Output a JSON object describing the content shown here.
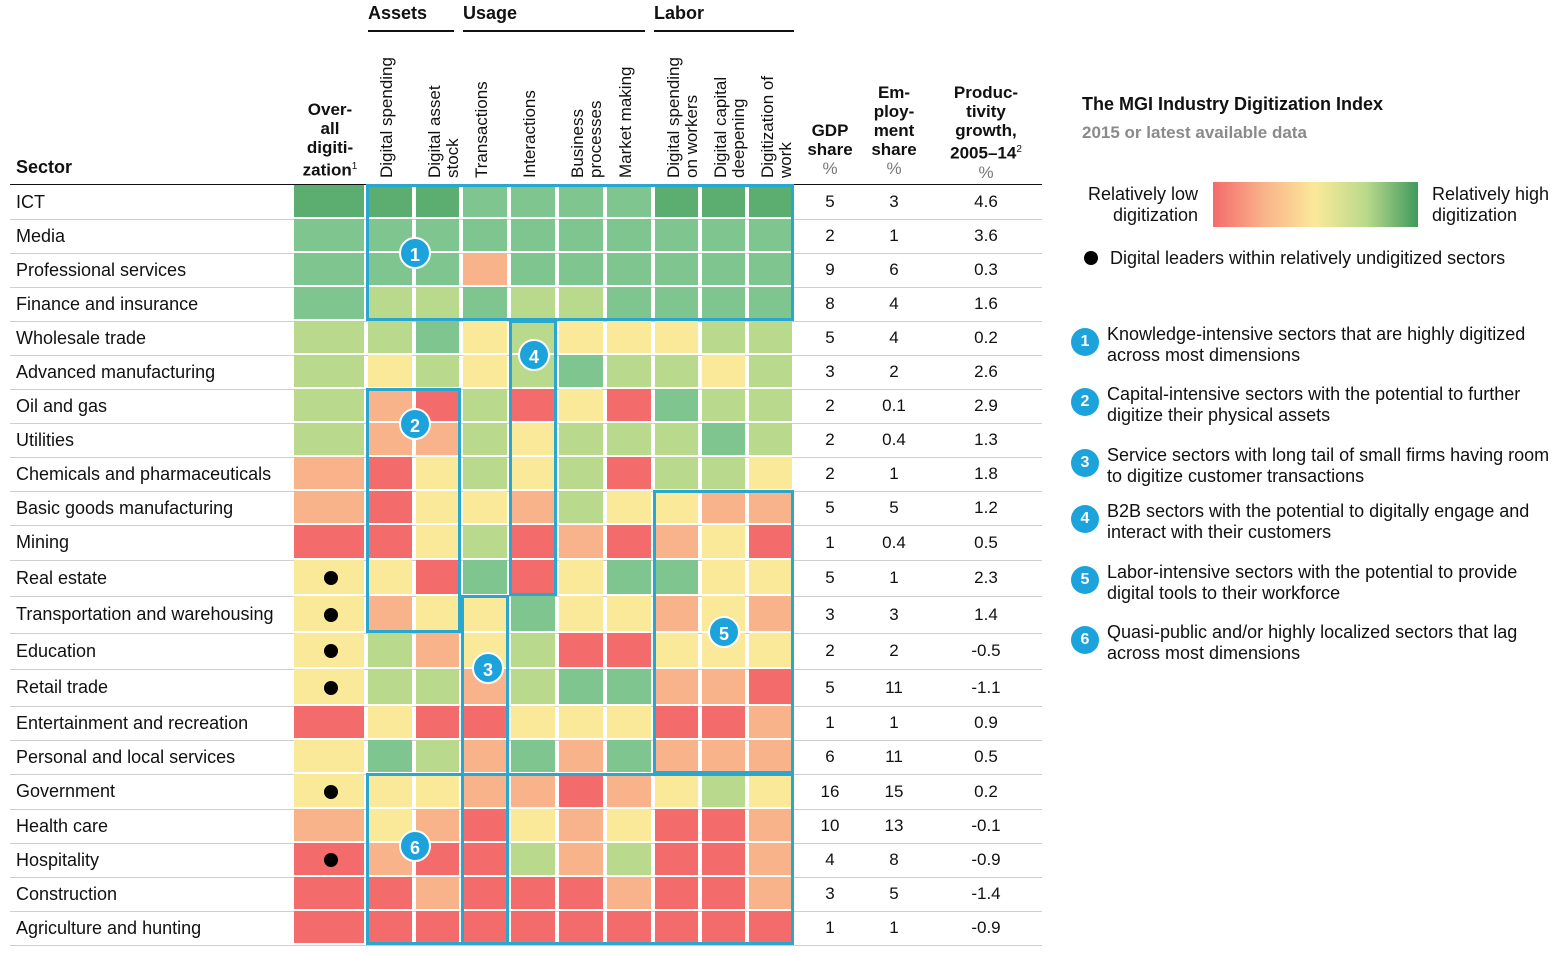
{
  "headers": {
    "sector": "Sector",
    "overall": [
      "Over-",
      "all",
      "digiti-",
      "zation"
    ],
    "overall_sup": "1",
    "groups": [
      "Assets",
      "Usage",
      "Labor"
    ],
    "metrics": [
      "Digital spending",
      "Digital asset stock",
      "Transactions",
      "Interactions",
      "Business processes",
      "Market making",
      "Digital spending on workers",
      "Digital capital deepening",
      "Digitization of work"
    ],
    "gdp": [
      "GDP",
      "share"
    ],
    "emp": [
      "Em-",
      "ploy-",
      "ment",
      "share"
    ],
    "prod": [
      "Produc-",
      "tivity",
      "growth,",
      "2005–14"
    ],
    "prod_sup": "2",
    "pct": "%"
  },
  "legend": {
    "title": "The MGI Industry Digitization Index",
    "subtitle": "2015 or latest available data",
    "low_label": "Relatively low digitization",
    "high_label": "Relatively high digitization",
    "dot_label": "Digital leaders within relatively undigitized sectors",
    "colors": [
      "#f46b6b",
      "#f9b38a",
      "#fbe99a",
      "#b9d98c",
      "#7fc58f",
      "#5bae70"
    ]
  },
  "clusters": [
    {
      "id": "1",
      "text": "Knowledge-intensive sectors that are highly digitized across most dimensions"
    },
    {
      "id": "2",
      "text": "Capital-intensive sectors with the potential to further digitize their physical assets"
    },
    {
      "id": "3",
      "text": "Service sectors with long tail of small firms having room to digitize customer transactions"
    },
    {
      "id": "4",
      "text": "B2B sectors with the potential to digitally engage and interact with their customers"
    },
    {
      "id": "5",
      "text": "Labor-intensive sectors with the potential to provide digital tools to their workforce"
    },
    {
      "id": "6",
      "text": "Quasi-public and/or highly localized sectors that lag across most dimensions"
    }
  ],
  "chart_data": {
    "type": "heatmap",
    "title": "The MGI Industry Digitization Index",
    "subtitle": "2015 or latest available data",
    "scale": "0 = relatively low digitization ... 5 = relatively high digitization",
    "columns": [
      "Overall digitization",
      "Digital spending",
      "Digital asset stock",
      "Transactions",
      "Interactions",
      "Business processes",
      "Market making",
      "Digital spending on workers",
      "Digital capital deepening",
      "Digitization of work"
    ],
    "rows": [
      {
        "sector": "ICT",
        "levels": [
          5,
          5,
          5,
          4,
          4,
          4,
          4,
          5,
          5,
          5
        ],
        "leader": false,
        "gdp": "5",
        "emp": "3",
        "prod": "4.6"
      },
      {
        "sector": "Media",
        "levels": [
          4,
          4,
          4,
          4,
          4,
          4,
          4,
          4,
          4,
          4
        ],
        "leader": false,
        "gdp": "2",
        "emp": "1",
        "prod": "3.6"
      },
      {
        "sector": "Professional services",
        "levels": [
          4,
          4,
          4,
          1,
          4,
          4,
          4,
          4,
          4,
          4
        ],
        "leader": false,
        "gdp": "9",
        "emp": "6",
        "prod": "0.3"
      },
      {
        "sector": "Finance and insurance",
        "levels": [
          4,
          3,
          3,
          4,
          3,
          3,
          4,
          4,
          4,
          4
        ],
        "leader": false,
        "gdp": "8",
        "emp": "4",
        "prod": "1.6"
      },
      {
        "sector": "Wholesale trade",
        "levels": [
          3,
          3,
          4,
          2,
          3,
          2,
          2,
          2,
          3,
          3
        ],
        "leader": false,
        "gdp": "5",
        "emp": "4",
        "prod": "0.2"
      },
      {
        "sector": "Advanced manufacturing",
        "levels": [
          3,
          2,
          3,
          2,
          3,
          4,
          3,
          3,
          2,
          3
        ],
        "leader": false,
        "gdp": "3",
        "emp": "2",
        "prod": "2.6"
      },
      {
        "sector": "Oil and gas",
        "levels": [
          3,
          1,
          0,
          3,
          0,
          2,
          0,
          4,
          3,
          3
        ],
        "leader": false,
        "gdp": "2",
        "emp": "0.1",
        "prod": "2.9"
      },
      {
        "sector": "Utilities",
        "levels": [
          3,
          1,
          1,
          3,
          2,
          3,
          3,
          3,
          4,
          3
        ],
        "leader": false,
        "gdp": "2",
        "emp": "0.4",
        "prod": "1.3"
      },
      {
        "sector": "Chemicals and pharmaceuticals",
        "levels": [
          1,
          0,
          2,
          3,
          2,
          3,
          0,
          3,
          3,
          2
        ],
        "leader": false,
        "gdp": "2",
        "emp": "1",
        "prod": "1.8"
      },
      {
        "sector": "Basic goods manufacturing",
        "levels": [
          1,
          0,
          2,
          2,
          1,
          3,
          2,
          2,
          1,
          1
        ],
        "leader": false,
        "gdp": "5",
        "emp": "5",
        "prod": "1.2"
      },
      {
        "sector": "Mining",
        "levels": [
          0,
          0,
          2,
          3,
          0,
          1,
          0,
          1,
          2,
          0
        ],
        "leader": false,
        "gdp": "1",
        "emp": "0.4",
        "prod": "0.5"
      },
      {
        "sector": "Real estate",
        "levels": [
          2,
          2,
          0,
          4,
          0,
          2,
          4,
          4,
          2,
          2
        ],
        "leader": true,
        "gdp": "5",
        "emp": "1",
        "prod": "2.3"
      },
      {
        "sector": "Transportation and warehousing",
        "levels": [
          2,
          1,
          2,
          2,
          4,
          2,
          2,
          1,
          2,
          1
        ],
        "leader": true,
        "gdp": "3",
        "emp": "3",
        "prod": "1.4"
      },
      {
        "sector": "Education",
        "levels": [
          2,
          3,
          1,
          2,
          3,
          0,
          0,
          2,
          2,
          2
        ],
        "leader": true,
        "gdp": "2",
        "emp": "2",
        "prod": "-0.5"
      },
      {
        "sector": "Retail trade",
        "levels": [
          2,
          3,
          3,
          1,
          3,
          4,
          4,
          1,
          1,
          0
        ],
        "leader": true,
        "gdp": "5",
        "emp": "11",
        "prod": "-1.1"
      },
      {
        "sector": "Entertainment and recreation",
        "levels": [
          0,
          2,
          0,
          0,
          2,
          2,
          2,
          0,
          0,
          1
        ],
        "leader": false,
        "gdp": "1",
        "emp": "1",
        "prod": "0.9"
      },
      {
        "sector": "Personal and local services",
        "levels": [
          2,
          4,
          3,
          1,
          4,
          1,
          4,
          1,
          1,
          1
        ],
        "leader": false,
        "gdp": "6",
        "emp": "11",
        "prod": "0.5"
      },
      {
        "sector": "Government",
        "levels": [
          2,
          2,
          2,
          1,
          1,
          0,
          1,
          2,
          3,
          2
        ],
        "leader": true,
        "gdp": "16",
        "emp": "15",
        "prod": "0.2"
      },
      {
        "sector": "Health care",
        "levels": [
          1,
          2,
          1,
          0,
          2,
          1,
          2,
          0,
          0,
          1
        ],
        "leader": false,
        "gdp": "10",
        "emp": "13",
        "prod": "-0.1"
      },
      {
        "sector": "Hospitality",
        "levels": [
          0,
          1,
          0,
          0,
          3,
          1,
          3,
          0,
          0,
          1
        ],
        "leader": true,
        "gdp": "4",
        "emp": "8",
        "prod": "-0.9"
      },
      {
        "sector": "Construction",
        "levels": [
          0,
          0,
          1,
          0,
          0,
          0,
          1,
          0,
          0,
          1
        ],
        "leader": false,
        "gdp": "3",
        "emp": "5",
        "prod": "-1.4"
      },
      {
        "sector": "Agriculture and hunting",
        "levels": [
          0,
          0,
          0,
          0,
          0,
          0,
          0,
          0,
          0,
          0
        ],
        "leader": false,
        "gdp": "1",
        "emp": "1",
        "prod": "-0.9"
      }
    ],
    "cluster_regions": [
      {
        "id": "1",
        "rows": [
          0,
          3
        ],
        "cols": [
          1,
          9
        ]
      },
      {
        "id": "2",
        "rows": [
          6,
          12
        ],
        "cols": [
          1,
          2
        ]
      },
      {
        "id": "3",
        "rows": [
          12,
          21
        ],
        "cols": [
          3,
          3
        ]
      },
      {
        "id": "4",
        "rows": [
          4,
          11
        ],
        "cols": [
          4,
          4
        ]
      },
      {
        "id": "5",
        "rows": [
          9,
          16
        ],
        "cols": [
          7,
          9
        ]
      },
      {
        "id": "6",
        "rows": [
          17,
          21
        ],
        "cols": [
          1,
          9
        ]
      }
    ]
  }
}
